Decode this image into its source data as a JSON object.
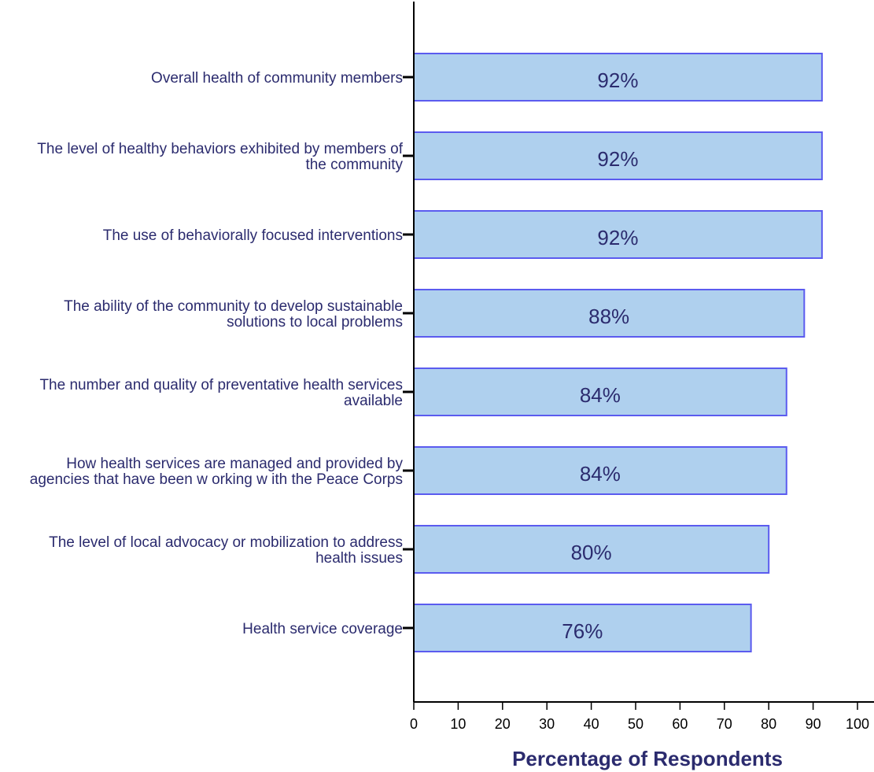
{
  "chart_data": {
    "type": "bar",
    "orientation": "horizontal",
    "categories": [
      [
        "Overall health of community members"
      ],
      [
        "The level of healthy behaviors exhibited by members of",
        "the community"
      ],
      [
        "The use of behaviorally focused interventions"
      ],
      [
        "The ability of the community to develop sustainable",
        "solutions to local problems"
      ],
      [
        "The number and quality of preventative health services",
        "available"
      ],
      [
        "How  health services are managed and provided by",
        "agencies that have been w orking w ith the Peace Corps"
      ],
      [
        "The level of local advocacy or mobilization to address",
        "health issues"
      ],
      [
        "Health service coverage"
      ]
    ],
    "values": [
      92,
      92,
      92,
      88,
      84,
      84,
      80,
      76
    ],
    "data_labels": [
      "92%",
      "92%",
      "92%",
      "88%",
      "84%",
      "84%",
      "80%",
      "76%"
    ],
    "xlabel": "Percentage of Respondents",
    "ylabel": "",
    "xlim": [
      0,
      100
    ],
    "xticks": [
      "0",
      "10",
      "20",
      "30",
      "40",
      "50",
      "60",
      "70",
      "80",
      "90",
      "100"
    ],
    "colors": {
      "bar_fill": "#afd0ee",
      "bar_stroke": "#5b5bef",
      "text": "#2b2b6e",
      "axis": "#000000"
    },
    "grid": false,
    "legend": "none"
  }
}
